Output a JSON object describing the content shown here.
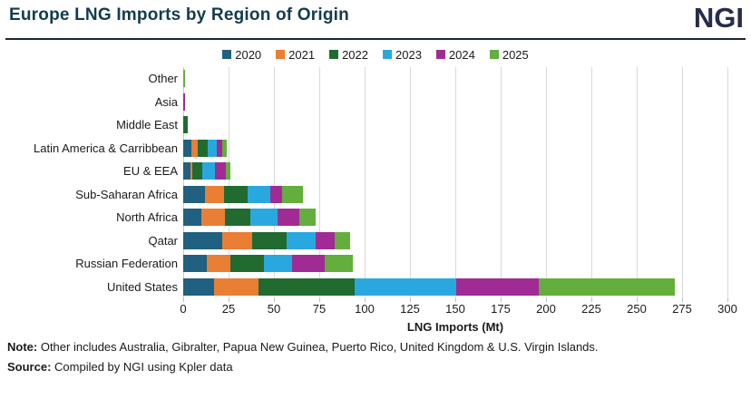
{
  "header": {
    "title": "Europe LNG Imports by Region of Origin",
    "logo": "NGI"
  },
  "chart_data": {
    "type": "bar",
    "orientation": "horizontal",
    "stacked": true,
    "title": "Europe LNG Imports by Region of Origin",
    "xlabel": "LNG Imports (Mt)",
    "ylabel": "",
    "xlim": [
      0,
      300
    ],
    "xticks": [
      0,
      25,
      50,
      75,
      100,
      125,
      150,
      175,
      200,
      225,
      250,
      275,
      300
    ],
    "grid": true,
    "legend_position": "top-center",
    "categories": [
      "Other",
      "Asia",
      "Middle East",
      "Latin America & Carribbean",
      "EU & EEA",
      "Sub-Saharan Africa",
      "North Africa",
      "Qatar",
      "Russian Federation",
      "United States"
    ],
    "series": [
      {
        "name": "2020",
        "color": "#206080",
        "values": [
          0,
          0,
          0,
          4.5,
          4,
          12,
          10,
          21.5,
          13,
          17
        ]
      },
      {
        "name": "2021",
        "color": "#e97e35",
        "values": [
          0,
          0,
          0,
          3.5,
          1,
          10.5,
          13,
          16.5,
          13,
          24.5
        ]
      },
      {
        "name": "2022",
        "color": "#216b31",
        "values": [
          0,
          0,
          2.5,
          5.5,
          5.5,
          13,
          14,
          19,
          18.5,
          53
        ]
      },
      {
        "name": "2023",
        "color": "#29a8e0",
        "values": [
          0,
          0,
          0,
          5,
          7,
          12.5,
          15,
          16,
          15.5,
          56
        ]
      },
      {
        "name": "2024",
        "color": "#a12b95",
        "values": [
          0,
          1,
          0,
          3,
          6,
          6.5,
          12,
          10.5,
          18,
          45.5
        ]
      },
      {
        "name": "2025",
        "color": "#63ae3d",
        "values": [
          1,
          0,
          0,
          2.5,
          2.5,
          11.5,
          9,
          8.5,
          15.5,
          75
        ]
      }
    ],
    "totals": [
      1,
      1,
      2.5,
      24,
      26,
      66,
      73,
      92,
      93.5,
      271
    ]
  },
  "footer": {
    "note_label": "Note:",
    "note_text": " Other includes Australia, Gibralter, Papua New Guinea, Puerto Rico, United Kingdom & U.S. Virgin Islands.",
    "source_label": "Source:",
    "source_text": " Compiled by NGI using Kpler data"
  }
}
